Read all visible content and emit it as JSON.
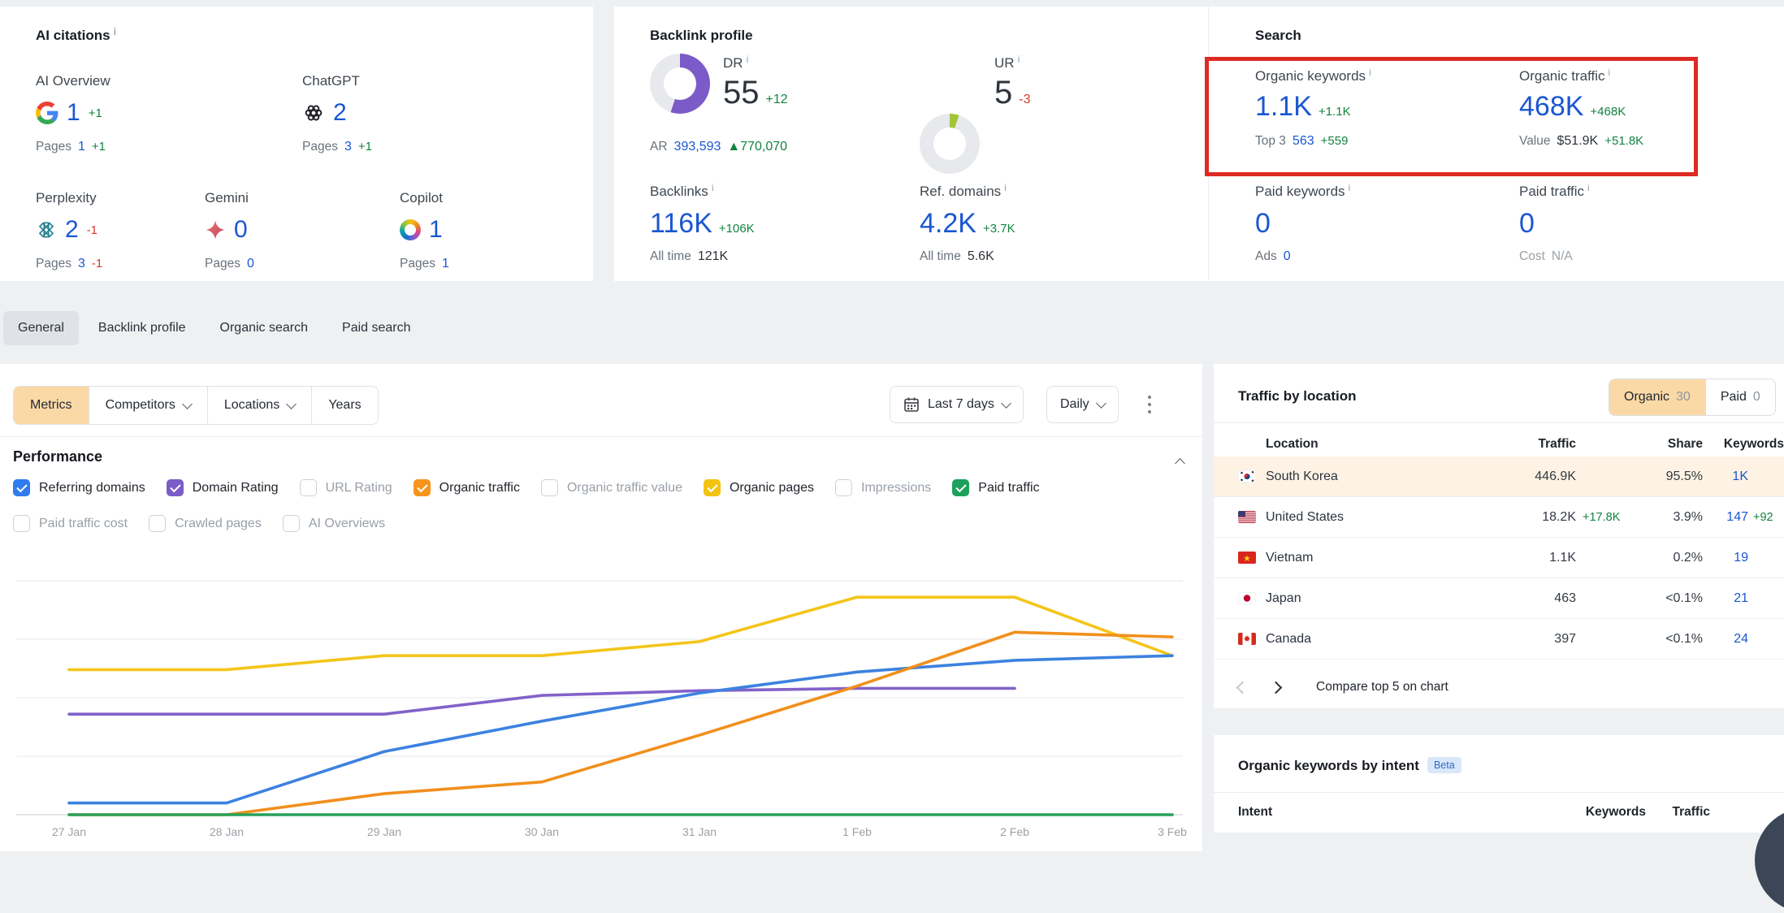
{
  "misc": {
    "info_i": "i"
  },
  "ai_citations": {
    "title": "AI citations",
    "cards": [
      {
        "label": "AI Overview",
        "value": "1",
        "delta": "+1",
        "pages_label": "Pages",
        "pages_value": "1",
        "pages_delta": "+1"
      },
      {
        "label": "ChatGPT",
        "value": "2",
        "delta": "",
        "pages_label": "Pages",
        "pages_value": "3",
        "pages_delta": "+1"
      },
      {
        "label": "Perplexity",
        "value": "2",
        "delta": "-1",
        "pages_label": "Pages",
        "pages_value": "3",
        "pages_delta": "-1"
      },
      {
        "label": "Gemini",
        "value": "0",
        "delta": "",
        "pages_label": "Pages",
        "pages_value": "0",
        "pages_delta": ""
      },
      {
        "label": "Copilot",
        "value": "1",
        "delta": "",
        "pages_label": "Pages",
        "pages_value": "1",
        "pages_delta": ""
      }
    ]
  },
  "backlink": {
    "title": "Backlink profile",
    "dr_label": "DR",
    "dr_value": "55",
    "dr_delta": "+12",
    "ar_label": "AR",
    "ar_value": "393,593",
    "ar_delta": "▲770,070",
    "ur_label": "UR",
    "ur_value": "5",
    "ur_delta": "-3",
    "backlinks_label": "Backlinks",
    "backlinks_value": "116K",
    "backlinks_delta": "+106K",
    "backlinks_alltime_label": "All time",
    "backlinks_alltime": "121K",
    "refdomains_label": "Ref. domains",
    "refdomains_value": "4.2K",
    "refdomains_delta": "+3.7K",
    "refdomains_alltime_label": "All time",
    "refdomains_alltime": "5.6K",
    "dr_percent": 55,
    "ur_percent": 5,
    "dr_color": "#7a5bc7",
    "ur_color": "#a3c53a"
  },
  "search": {
    "title": "Search",
    "ok_label": "Organic keywords",
    "ok_value": "1.1K",
    "ok_delta": "+1.1K",
    "ok_sub_label": "Top 3",
    "ok_sub_value": "563",
    "ok_sub_delta": "+559",
    "ot_label": "Organic traffic",
    "ot_value": "468K",
    "ot_delta": "+468K",
    "ot_sub_label": "Value",
    "ot_sub_value": "$51.9K",
    "ot_sub_delta": "+51.8K",
    "pk_label": "Paid keywords",
    "pk_value": "0",
    "pk_sub_label": "Ads",
    "pk_sub_value": "0",
    "pt_label": "Paid traffic",
    "pt_value": "0",
    "pt_sub_label": "Cost",
    "pt_sub_value": "N/A"
  },
  "tabs": {
    "items": [
      {
        "label": "General",
        "active": true
      },
      {
        "label": "Backlink profile",
        "active": false
      },
      {
        "label": "Organic search",
        "active": false
      },
      {
        "label": "Paid search",
        "active": false
      }
    ]
  },
  "filters": {
    "metrics": "Metrics",
    "competitors": "Competitors",
    "locations": "Locations",
    "years": "Years",
    "date_range": "Last 7 days",
    "granularity": "Daily"
  },
  "performance": {
    "title": "Performance",
    "checkboxes": [
      {
        "label": "Referring domains",
        "checked": true,
        "color": "#2e7cf0"
      },
      {
        "label": "Domain Rating",
        "checked": true,
        "color": "#7a5cc9"
      },
      {
        "label": "URL Rating",
        "checked": false,
        "color": ""
      },
      {
        "label": "Organic traffic",
        "checked": true,
        "color": "#f7941e"
      },
      {
        "label": "Organic traffic value",
        "checked": false,
        "color": ""
      },
      {
        "label": "Organic pages",
        "checked": true,
        "color": "#f3c312"
      },
      {
        "label": "Impressions",
        "checked": false,
        "color": ""
      },
      {
        "label": "Paid traffic",
        "checked": true,
        "color": "#1ba15c"
      },
      {
        "label": "Paid traffic cost",
        "checked": false,
        "color": ""
      },
      {
        "label": "Crawled pages",
        "checked": false,
        "color": ""
      },
      {
        "label": "AI Overviews",
        "checked": false,
        "color": ""
      }
    ]
  },
  "chart_data": {
    "type": "line",
    "x": [
      "27 Jan",
      "28 Jan",
      "29 Jan",
      "30 Jan",
      "31 Jan",
      "1 Feb",
      "2 Feb",
      "3 Feb"
    ],
    "ylim": [
      0,
      110
    ],
    "grid": true,
    "legend": "none",
    "series": [
      {
        "name": "Domain Rating",
        "color": "#8162c9",
        "values": [
          43,
          43,
          43,
          51,
          53,
          54,
          54,
          null
        ]
      },
      {
        "name": "Organic pages",
        "color": "#f4c51a",
        "values": [
          62,
          62,
          68,
          68,
          74,
          93,
          93,
          68
        ]
      },
      {
        "name": "Referring domains",
        "color": "#3c82e0",
        "values": [
          5,
          5,
          27,
          40,
          52,
          61,
          66,
          68
        ]
      },
      {
        "name": "Organic traffic",
        "color": "#f18f1c",
        "values": [
          0,
          0,
          9,
          14,
          34,
          55,
          78,
          76
        ]
      },
      {
        "name": "Paid traffic",
        "color": "#27a158",
        "values": [
          0,
          0,
          0,
          0,
          0,
          0,
          0,
          0
        ]
      }
    ]
  },
  "traffic_by_location": {
    "title": "Traffic by location",
    "toggle": {
      "organic_label": "Organic",
      "organic_count": "30",
      "paid_label": "Paid",
      "paid_count": "0"
    },
    "headers": {
      "location": "Location",
      "traffic": "Traffic",
      "share": "Share",
      "keywords": "Keywords"
    },
    "rows": [
      {
        "country": "South Korea",
        "traffic": "446.9K",
        "traffic_delta": "",
        "share": "95.5%",
        "keywords": "1K",
        "keywords_delta": "",
        "highlight": true
      },
      {
        "country": "United States",
        "traffic": "18.2K",
        "traffic_delta": "+17.8K",
        "share": "3.9%",
        "keywords": "147",
        "keywords_delta": "+92",
        "highlight": false
      },
      {
        "country": "Vietnam",
        "traffic": "1.1K",
        "traffic_delta": "",
        "share": "0.2%",
        "keywords": "19",
        "keywords_delta": "",
        "highlight": false
      },
      {
        "country": "Japan",
        "traffic": "463",
        "traffic_delta": "",
        "share": "<0.1%",
        "keywords": "21",
        "keywords_delta": "",
        "highlight": false
      },
      {
        "country": "Canada",
        "traffic": "397",
        "traffic_delta": "",
        "share": "<0.1%",
        "keywords": "24",
        "keywords_delta": "",
        "highlight": false
      }
    ],
    "compare_label": "Compare top 5 on chart"
  },
  "intent": {
    "title": "Organic keywords by intent",
    "badge": "Beta",
    "headers": {
      "intent": "Intent",
      "keywords": "Keywords",
      "traffic": "Traffic"
    }
  }
}
